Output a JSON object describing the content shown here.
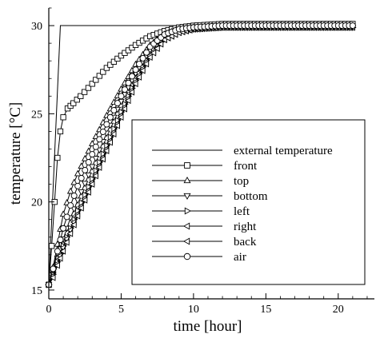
{
  "chart_data": {
    "type": "line",
    "title": "",
    "xlabel": "time [hour]",
    "ylabel": "temperature [°C]",
    "xlim": [
      0,
      22.5
    ],
    "ylim": [
      14.5,
      31
    ],
    "x_ticks": [
      0,
      5,
      10,
      15,
      20
    ],
    "y_ticks": [
      15,
      20,
      25,
      30
    ],
    "x_tick_labels": [
      "0",
      "5",
      "10",
      "15",
      "20"
    ],
    "y_tick_labels": [
      "15",
      "20",
      "25",
      "30"
    ],
    "grid": false,
    "legend_position": "inside right",
    "series": [
      {
        "name": "external temperature",
        "marker": "none",
        "x": [
          0,
          0.8,
          21
        ],
        "y": [
          15.3,
          30,
          30
        ]
      },
      {
        "name": "front",
        "marker": "square",
        "x": [
          0,
          0.2,
          0.4,
          0.6,
          0.8,
          1.0,
          1.3,
          1.7,
          2.2,
          3.0,
          4.0,
          5.0,
          6.0,
          7.0,
          8.0,
          9.0,
          10.0,
          12.0,
          15.0,
          18.0,
          21.0
        ],
        "y": [
          15.3,
          17.5,
          20.0,
          22.5,
          24.0,
          24.8,
          25.3,
          25.6,
          26.0,
          26.7,
          27.6,
          28.3,
          28.9,
          29.4,
          29.7,
          29.9,
          30.0,
          30.1,
          30.1,
          30.1,
          30.1
        ]
      },
      {
        "name": "top",
        "marker": "triangle-up",
        "x": [
          0,
          0.3,
          0.6,
          1.0,
          1.5,
          2.0,
          3.0,
          4.0,
          5.0,
          6.0,
          7.0,
          8.0,
          9.0,
          10.0,
          12.0,
          15.0,
          18.0,
          21.0
        ],
        "y": [
          15.3,
          16.3,
          17.6,
          19.3,
          20.6,
          21.6,
          23.3,
          24.9,
          26.4,
          27.8,
          28.9,
          29.5,
          29.8,
          29.9,
          30.0,
          30.0,
          30.0,
          30.0
        ]
      },
      {
        "name": "bottom",
        "marker": "triangle-down",
        "x": [
          0,
          0.3,
          0.6,
          1.0,
          1.5,
          2.0,
          3.0,
          4.0,
          5.0,
          6.0,
          7.0,
          8.0,
          9.0,
          10.0,
          12.0,
          15.0,
          18.0,
          21.0
        ],
        "y": [
          15.3,
          15.9,
          16.8,
          17.9,
          19.1,
          20.1,
          22.0,
          23.9,
          25.7,
          27.3,
          28.6,
          29.3,
          29.7,
          29.8,
          29.9,
          29.9,
          29.9,
          29.9
        ]
      },
      {
        "name": "left",
        "marker": "triangle-right",
        "x": [
          0,
          0.3,
          0.6,
          1.0,
          1.5,
          2.0,
          3.0,
          4.0,
          5.0,
          6.0,
          7.0,
          8.0,
          9.0,
          10.0,
          12.0,
          15.0,
          18.0,
          21.0
        ],
        "y": [
          15.3,
          15.9,
          16.6,
          17.5,
          18.5,
          19.5,
          21.3,
          23.2,
          25.1,
          26.9,
          28.4,
          29.3,
          29.7,
          29.8,
          29.9,
          29.9,
          29.9,
          29.9
        ]
      },
      {
        "name": "right",
        "marker": "triangle-left",
        "x": [
          0,
          0.3,
          0.6,
          1.0,
          1.5,
          2.0,
          3.0,
          4.0,
          5.0,
          6.0,
          7.0,
          8.0,
          9.0,
          10.0,
          12.0,
          15.0,
          18.0,
          21.0
        ],
        "y": [
          15.3,
          15.8,
          16.5,
          17.4,
          18.4,
          19.3,
          21.1,
          23.0,
          24.9,
          26.8,
          28.3,
          29.2,
          29.6,
          29.8,
          29.9,
          29.9,
          29.9,
          29.9
        ]
      },
      {
        "name": "back",
        "marker": "triangle-left",
        "x": [
          0,
          0.3,
          0.6,
          1.0,
          1.5,
          2.0,
          3.0,
          4.0,
          5.0,
          6.0,
          7.0,
          8.0,
          9.0,
          10.0,
          12.0,
          15.0,
          18.0,
          21.0
        ],
        "y": [
          15.3,
          15.7,
          16.4,
          17.2,
          18.2,
          19.2,
          21.0,
          22.9,
          24.8,
          26.7,
          28.2,
          29.2,
          29.6,
          29.8,
          29.9,
          29.9,
          29.9,
          29.9
        ]
      },
      {
        "name": "air",
        "marker": "circle",
        "x": [
          0,
          0.3,
          0.6,
          1.0,
          1.5,
          2.0,
          3.0,
          4.0,
          5.0,
          6.0,
          7.0,
          8.0,
          9.0,
          10.0,
          12.0,
          15.0,
          18.0,
          21.0
        ],
        "y": [
          15.3,
          16.2,
          17.2,
          18.5,
          19.8,
          20.9,
          22.7,
          24.4,
          26.0,
          27.5,
          28.8,
          29.5,
          29.8,
          29.9,
          30.0,
          30.0,
          30.0,
          30.0
        ]
      }
    ]
  }
}
